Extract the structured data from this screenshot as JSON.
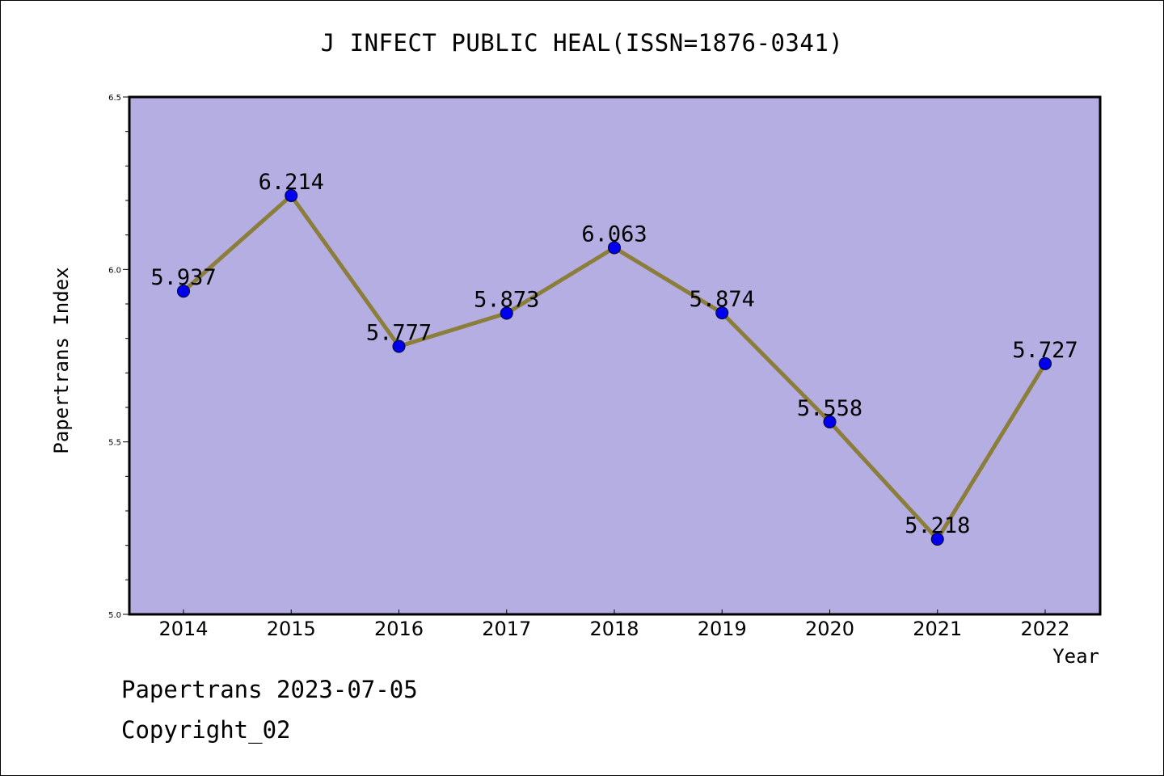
{
  "title": "J INFECT PUBLIC HEAL(ISSN=1876-0341)",
  "footer": {
    "date_line": "Papertrans 2023-07-05",
    "copyright_line": "Copyright_02"
  },
  "colors": {
    "plot_background": "#b5aee2",
    "line": "#8b7d3a",
    "marker": "#0000ee",
    "frame": "#000000"
  },
  "chart_data": {
    "type": "line",
    "title": "J INFECT PUBLIC HEAL(ISSN=1876-0341)",
    "xlabel": "Year",
    "ylabel": "Papertrans Index",
    "categories": [
      "2014",
      "2015",
      "2016",
      "2017",
      "2018",
      "2019",
      "2020",
      "2021",
      "2022"
    ],
    "series": [
      {
        "values": [
          5.937,
          6.214,
          5.777,
          5.873,
          6.063,
          5.874,
          5.558,
          5.218,
          5.727
        ],
        "labels": [
          "5.937",
          "6.214",
          "5.777",
          "5.873",
          "6.063",
          "5.874",
          "5.558",
          "5.218",
          "5.727"
        ]
      }
    ],
    "ylim": [
      5.0,
      6.5
    ],
    "yticks": [
      "5.0",
      "5.5",
      "6.0",
      "6.5"
    ],
    "grid": false,
    "legend": "none"
  }
}
